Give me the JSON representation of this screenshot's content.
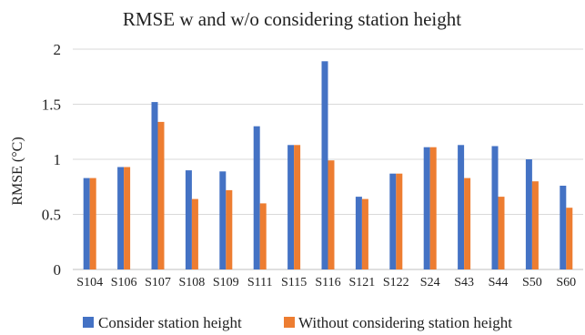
{
  "chart_data": {
    "type": "bar",
    "title": "RMSE w and w/o considering station height",
    "xlabel": "",
    "ylabel": "RMSE (°C)",
    "ylim": [
      0,
      2
    ],
    "yticks": [
      "0",
      "0.5",
      "1",
      "1.5",
      "2"
    ],
    "grid": true,
    "legend_position": "bottom",
    "categories": [
      "S104",
      "S106",
      "S107",
      "S108",
      "S109",
      "S111",
      "S115",
      "S116",
      "S121",
      "S122",
      "S24",
      "S43",
      "S44",
      "S50",
      "S60"
    ],
    "series": [
      {
        "name": "Consider station height",
        "color": "#4472c4",
        "values": [
          0.83,
          0.93,
          1.52,
          0.9,
          0.89,
          1.3,
          1.13,
          1.89,
          0.66,
          0.87,
          1.11,
          1.13,
          1.12,
          1.0,
          0.76
        ]
      },
      {
        "name": "Without considering station height",
        "color": "#ed7d31",
        "values": [
          0.83,
          0.93,
          1.34,
          0.64,
          0.72,
          0.6,
          1.13,
          0.99,
          0.64,
          0.87,
          1.11,
          0.83,
          0.66,
          0.8,
          0.56
        ]
      }
    ]
  }
}
